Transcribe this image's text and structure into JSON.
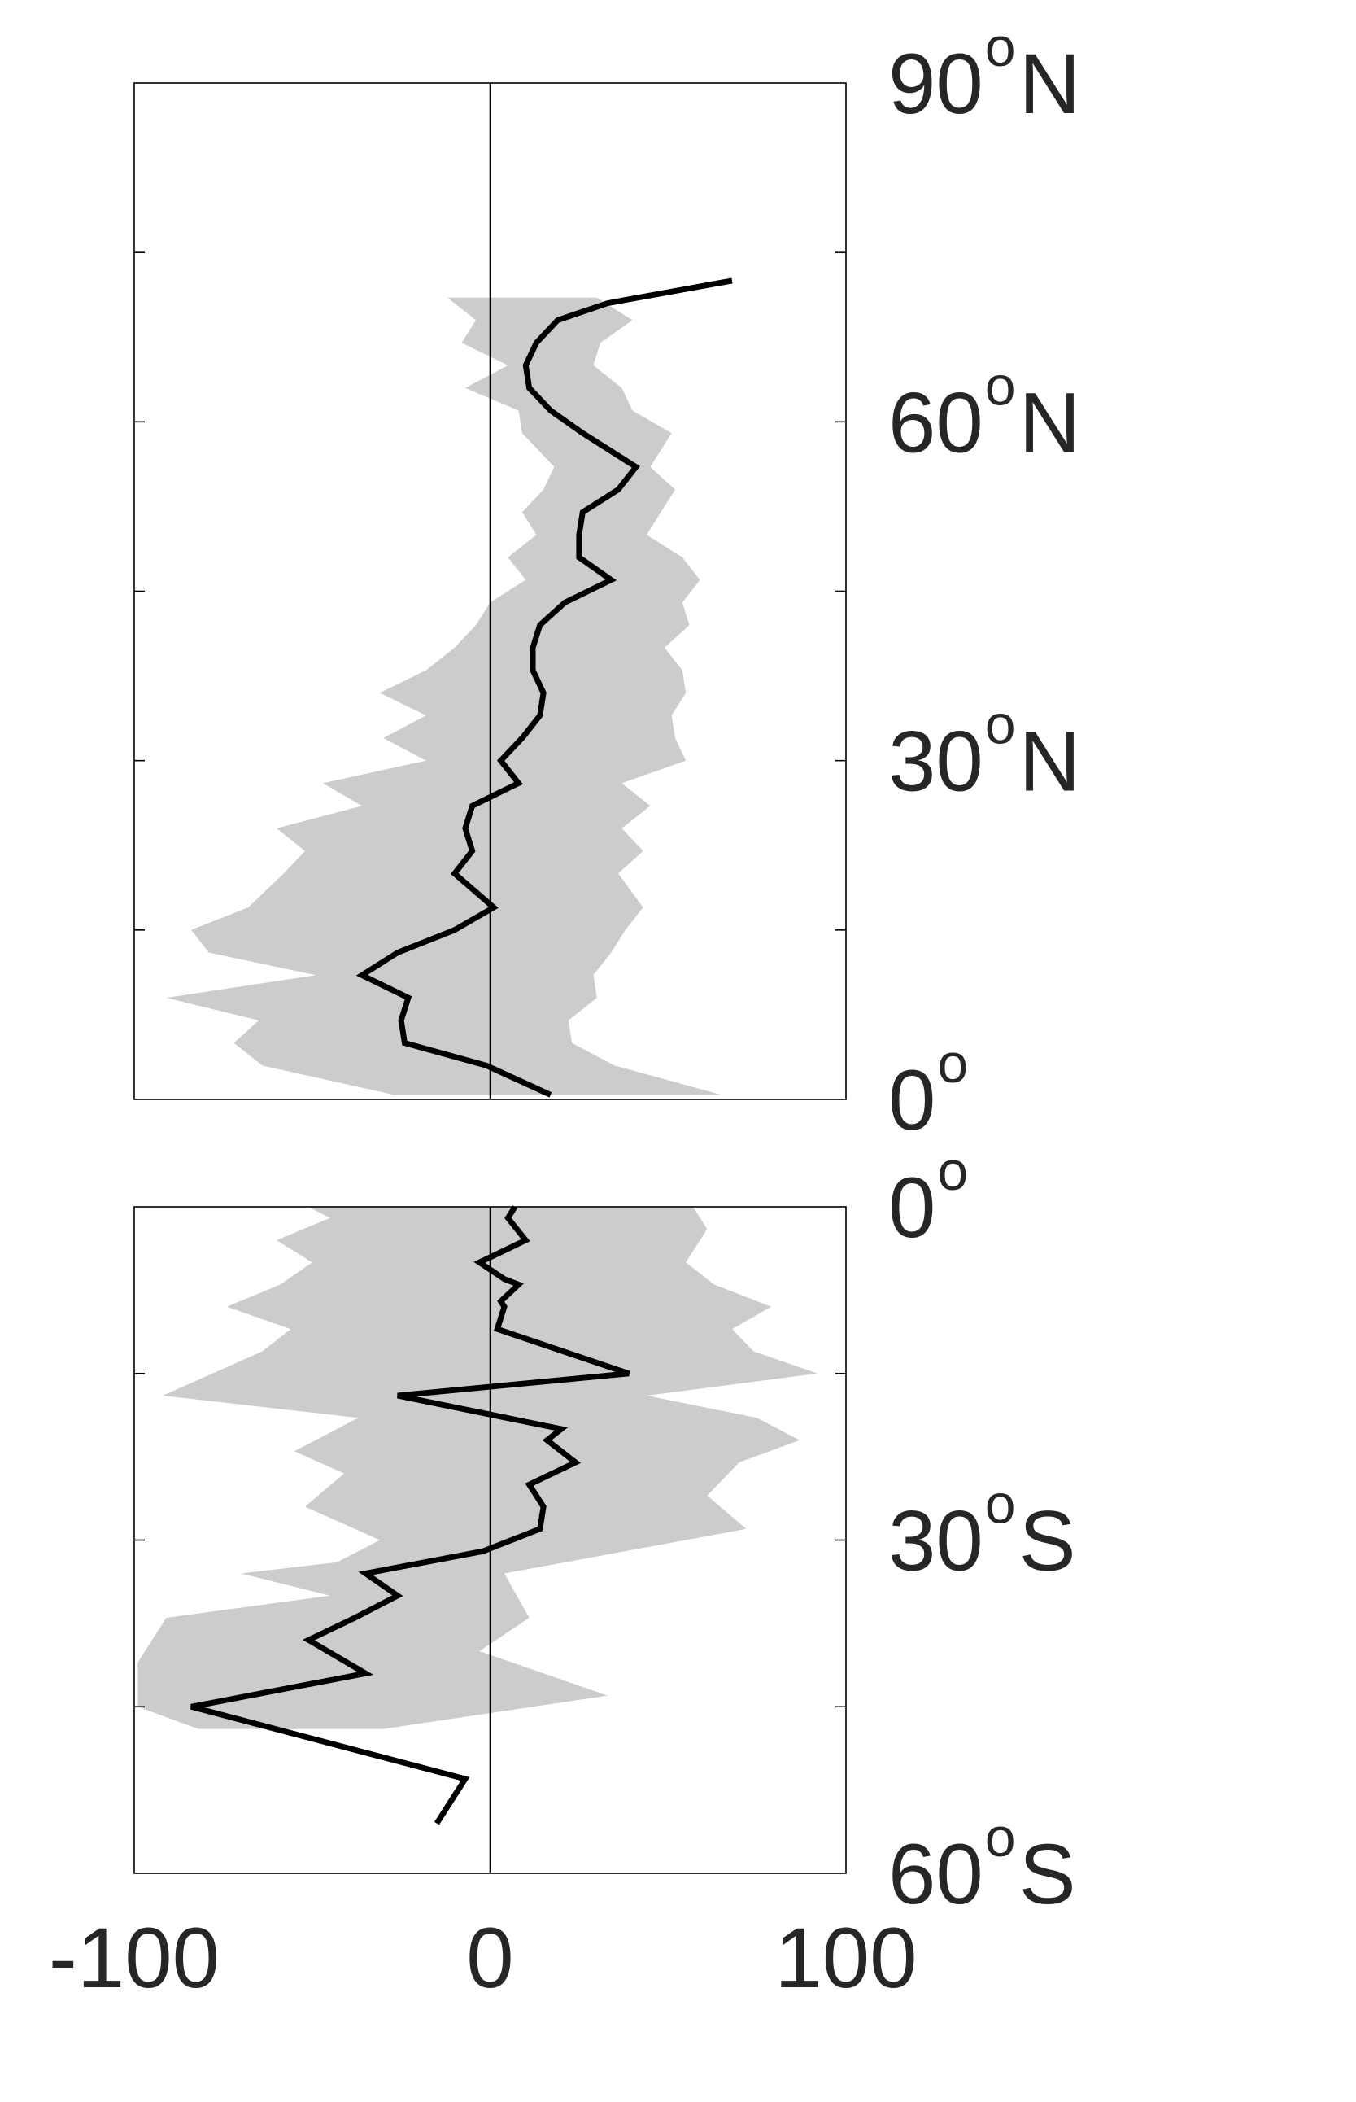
{
  "chart_data": [
    {
      "type": "line",
      "panel": "north",
      "x_range": [
        -100,
        100
      ],
      "y_range": [
        0,
        90
      ],
      "y_ticks": [
        0,
        15,
        30,
        45,
        60,
        75,
        90
      ],
      "y_tick_labels": [
        {
          "lat": 90,
          "num": "90",
          "deg": "o",
          "hemi": "N"
        },
        {
          "lat": 60,
          "num": "60",
          "deg": "o",
          "hemi": "N"
        },
        {
          "lat": 30,
          "num": "30",
          "deg": "o",
          "hemi": "N"
        },
        {
          "lat": 0,
          "num": "0",
          "deg": "o",
          "hemi": ""
        }
      ],
      "zero_line": true,
      "line": {
        "color": "#000000",
        "points": [
          [
            17,
            0.4
          ],
          [
            -1,
            3
          ],
          [
            -24,
            5
          ],
          [
            -25,
            7
          ],
          [
            -23,
            9
          ],
          [
            -36,
            11
          ],
          [
            -26,
            13
          ],
          [
            -10,
            15
          ],
          [
            1,
            17
          ],
          [
            -10,
            20
          ],
          [
            -5,
            22
          ],
          [
            -7,
            24
          ],
          [
            -5,
            26
          ],
          [
            8,
            28
          ],
          [
            3,
            30
          ],
          [
            9,
            32
          ],
          [
            14,
            34
          ],
          [
            15,
            36
          ],
          [
            12,
            38
          ],
          [
            12,
            40
          ],
          [
            14,
            42
          ],
          [
            21,
            44
          ],
          [
            34,
            46
          ],
          [
            25,
            48
          ],
          [
            25,
            50
          ],
          [
            26,
            52
          ],
          [
            36,
            54
          ],
          [
            41,
            56
          ],
          [
            26,
            59
          ],
          [
            17,
            61
          ],
          [
            11,
            63
          ],
          [
            10,
            65
          ],
          [
            13,
            67
          ],
          [
            19,
            69
          ],
          [
            33,
            70.5
          ],
          [
            68,
            72.5
          ]
        ]
      },
      "band": {
        "color": "#cccccc",
        "lower": [
          [
            -27,
            0.4
          ],
          [
            -64,
            3
          ],
          [
            -72,
            5
          ],
          [
            -65,
            7
          ],
          [
            -91,
            9
          ],
          [
            -49,
            11
          ],
          [
            -79,
            13
          ],
          [
            -84,
            15
          ],
          [
            -68,
            17
          ],
          [
            -58,
            20
          ],
          [
            -52,
            22
          ],
          [
            -60,
            24
          ],
          [
            -36,
            26
          ],
          [
            -47,
            28
          ],
          [
            -18,
            30
          ],
          [
            -30,
            32
          ],
          [
            -18,
            34
          ],
          [
            -31,
            36
          ],
          [
            -18,
            38
          ],
          [
            -10,
            40
          ],
          [
            -4,
            42
          ],
          [
            0,
            44
          ],
          [
            10,
            46
          ],
          [
            5,
            48
          ],
          [
            13,
            50
          ],
          [
            9,
            52
          ],
          [
            15,
            54
          ],
          [
            18,
            56
          ],
          [
            9,
            59
          ],
          [
            8,
            61
          ],
          [
            -7,
            63
          ],
          [
            5,
            65
          ],
          [
            -8,
            67
          ],
          [
            -4,
            69
          ],
          [
            -12,
            71
          ]
        ],
        "upper": [
          [
            65,
            0.4
          ],
          [
            35,
            3
          ],
          [
            23,
            5
          ],
          [
            22,
            7
          ],
          [
            30,
            9
          ],
          [
            29,
            11
          ],
          [
            34,
            13
          ],
          [
            38,
            15
          ],
          [
            43,
            17
          ],
          [
            36,
            20
          ],
          [
            43,
            22
          ],
          [
            37,
            24
          ],
          [
            45,
            26
          ],
          [
            37,
            28
          ],
          [
            55,
            30
          ],
          [
            52,
            32
          ],
          [
            51,
            34
          ],
          [
            55,
            36
          ],
          [
            54,
            38
          ],
          [
            49,
            40
          ],
          [
            56,
            42
          ],
          [
            54,
            44
          ],
          [
            59,
            46
          ],
          [
            54,
            48
          ],
          [
            44,
            50
          ],
          [
            48,
            52
          ],
          [
            52,
            54
          ],
          [
            45,
            56
          ],
          [
            51,
            59
          ],
          [
            40,
            61
          ],
          [
            37,
            63
          ],
          [
            29,
            65
          ],
          [
            31,
            67
          ],
          [
            40,
            69
          ],
          [
            30,
            71
          ]
        ]
      }
    },
    {
      "type": "line",
      "panel": "south",
      "x_range": [
        -100,
        100
      ],
      "y_range": [
        0,
        60
      ],
      "y_ticks": [
        0,
        15,
        30,
        45,
        60
      ],
      "y_tick_labels": [
        {
          "lat": 0,
          "num": "0",
          "deg": "o",
          "hemi": ""
        },
        {
          "lat": 30,
          "num": "30",
          "deg": "o",
          "hemi": "S"
        },
        {
          "lat": 60,
          "num": "60",
          "deg": "o",
          "hemi": "S"
        }
      ],
      "x_ticks": [
        -100,
        0,
        100
      ],
      "x_tick_labels": [
        "-100",
        "0",
        "100"
      ],
      "zero_line": true,
      "line": {
        "color": "#000000",
        "points": [
          [
            7,
            0
          ],
          [
            5,
            1
          ],
          [
            10,
            3
          ],
          [
            -3,
            5
          ],
          [
            4,
            6.5
          ],
          [
            8,
            7
          ],
          [
            3,
            8.5
          ],
          [
            4,
            9
          ],
          [
            2,
            11
          ],
          [
            39,
            15
          ],
          [
            -26,
            17
          ],
          [
            20,
            20
          ],
          [
            16,
            21
          ],
          [
            24,
            23
          ],
          [
            11,
            25
          ],
          [
            15,
            27
          ],
          [
            14,
            29
          ],
          [
            -2,
            31
          ],
          [
            -35,
            33
          ],
          [
            -26,
            35
          ],
          [
            -38,
            37
          ],
          [
            -51,
            39
          ],
          [
            -35,
            42
          ],
          [
            -84,
            45
          ],
          [
            -7,
            51.5
          ],
          [
            -15,
            55.5
          ]
        ]
      },
      "band": {
        "color": "#cccccc",
        "lower": [
          [
            -51,
            0
          ],
          [
            -45,
            1
          ],
          [
            -60,
            3
          ],
          [
            -50,
            5
          ],
          [
            -59,
            7
          ],
          [
            -74,
            9
          ],
          [
            -56,
            11
          ],
          [
            -64,
            13
          ],
          [
            -92,
            17
          ],
          [
            -37,
            19
          ],
          [
            -55,
            22
          ],
          [
            -41,
            24
          ],
          [
            -52,
            27
          ],
          [
            -31,
            30
          ],
          [
            -43,
            32
          ],
          [
            -70,
            33
          ],
          [
            -45,
            35
          ],
          [
            -91,
            37
          ],
          [
            -99,
            41
          ],
          [
            -99,
            45
          ],
          [
            -82,
            47
          ]
        ],
        "upper": [
          [
            57,
            0
          ],
          [
            61,
            2
          ],
          [
            55,
            5
          ],
          [
            63,
            7
          ],
          [
            79,
            9
          ],
          [
            68,
            11
          ],
          [
            74,
            13
          ],
          [
            92,
            15
          ],
          [
            44,
            17
          ],
          [
            75,
            19
          ],
          [
            87,
            21
          ],
          [
            70,
            23
          ],
          [
            61,
            26
          ],
          [
            72,
            29
          ],
          [
            4,
            33
          ],
          [
            11,
            37
          ],
          [
            -3,
            40
          ],
          [
            33,
            44
          ],
          [
            -30,
            47
          ]
        ]
      }
    }
  ]
}
